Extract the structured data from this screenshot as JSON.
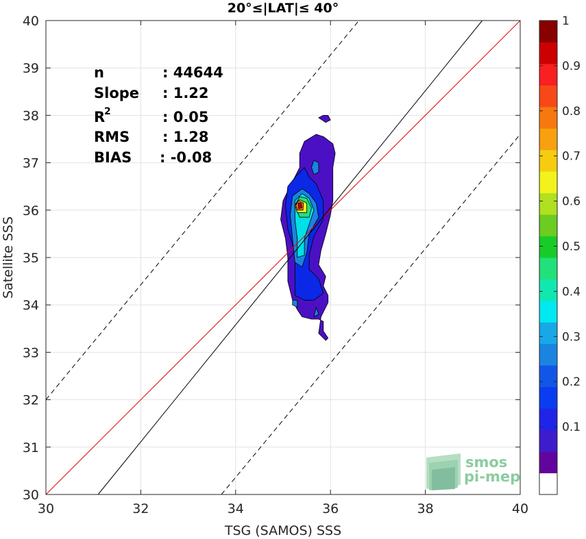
{
  "chart_data": {
    "type": "scatter",
    "title": "20°≤|LAT|≤ 40°",
    "xlabel": "TSG (SAMOS) SSS",
    "ylabel": "Satellite SSS",
    "xlim": [
      30,
      40
    ],
    "ylim": [
      30,
      40
    ],
    "xticks": [
      "30",
      "32",
      "34",
      "36",
      "38",
      "40"
    ],
    "yticks": [
      "30",
      "31",
      "32",
      "33",
      "34",
      "35",
      "36",
      "37",
      "38",
      "39",
      "40"
    ],
    "grid": true,
    "stats": [
      {
        "key": "n",
        "value": ": 44644"
      },
      {
        "key": "Slope",
        "value": ": 1.22"
      },
      {
        "key": "R",
        "sup": "2",
        "value": ": 0.05"
      },
      {
        "key": "RMS",
        "value": ": 1.28"
      },
      {
        "key": "BIAS",
        "value": ": -0.08"
      }
    ],
    "lines": [
      {
        "kind": "one-to-one",
        "color": "#e8000b",
        "style": "solid",
        "points": [
          [
            30,
            30
          ],
          [
            40,
            40
          ]
        ]
      },
      {
        "kind": "regression",
        "color": "#000000",
        "style": "solid",
        "points": [
          [
            31.1,
            30
          ],
          [
            39.2,
            40
          ]
        ]
      },
      {
        "kind": "upper-bound",
        "color": "#000000",
        "style": "dashed",
        "points": [
          [
            30,
            32
          ],
          [
            36.6,
            40
          ]
        ]
      },
      {
        "kind": "lower-bound",
        "color": "#000000",
        "style": "dashed",
        "points": [
          [
            33.7,
            30
          ],
          [
            40,
            37.6
          ]
        ]
      }
    ],
    "density_contours": [
      {
        "level": 0.05,
        "color": "#4b10c4",
        "points": [
          [
            35.3,
            33.9
          ],
          [
            35.4,
            33.75
          ],
          [
            35.6,
            33.7
          ],
          [
            35.75,
            33.7
          ],
          [
            35.85,
            33.65
          ],
          [
            35.85,
            33.45
          ],
          [
            35.95,
            33.3
          ],
          [
            35.9,
            33.25
          ],
          [
            35.75,
            33.4
          ],
          [
            35.8,
            33.75
          ],
          [
            35.95,
            34.05
          ],
          [
            35.95,
            34.2
          ],
          [
            35.85,
            34.4
          ],
          [
            35.9,
            34.6
          ],
          [
            35.75,
            34.85
          ],
          [
            35.8,
            35.15
          ],
          [
            35.9,
            35.5
          ],
          [
            36.0,
            35.9
          ],
          [
            36.05,
            36.2
          ],
          [
            36.05,
            36.5
          ],
          [
            36.05,
            36.9
          ],
          [
            36.1,
            37.2
          ],
          [
            36.05,
            37.4
          ],
          [
            35.85,
            37.55
          ],
          [
            35.7,
            37.6
          ],
          [
            35.45,
            37.45
          ],
          [
            35.35,
            37.2
          ],
          [
            35.35,
            36.9
          ],
          [
            35.2,
            36.6
          ],
          [
            35.0,
            36.2
          ],
          [
            34.95,
            35.8
          ],
          [
            35.05,
            35.4
          ],
          [
            35.1,
            35.0
          ],
          [
            35.1,
            34.5
          ],
          [
            35.2,
            34.1
          ]
        ]
      },
      {
        "level": 0.05,
        "color": "#4b10c4",
        "points": [
          [
            35.75,
            37.95
          ],
          [
            35.85,
            38.0
          ],
          [
            35.95,
            38.0
          ],
          [
            36.0,
            37.9
          ],
          [
            35.9,
            37.85
          ]
        ]
      },
      {
        "level": 0.15,
        "color": "#0a28e6",
        "points": [
          [
            35.25,
            34.2
          ],
          [
            35.45,
            34.1
          ],
          [
            35.65,
            34.1
          ],
          [
            35.85,
            34.25
          ],
          [
            35.75,
            34.55
          ],
          [
            35.55,
            34.75
          ],
          [
            35.55,
            35.05
          ],
          [
            35.65,
            35.45
          ],
          [
            35.85,
            35.8
          ],
          [
            35.85,
            36.2
          ],
          [
            35.7,
            36.55
          ],
          [
            35.55,
            36.7
          ],
          [
            35.45,
            36.9
          ],
          [
            35.3,
            36.75
          ],
          [
            35.1,
            36.5
          ],
          [
            35.05,
            36.1
          ],
          [
            35.1,
            35.6
          ],
          [
            35.25,
            35.1
          ],
          [
            35.25,
            34.6
          ]
        ]
      },
      {
        "level": 0.25,
        "color": "#1a84e0",
        "points": [
          [
            35.25,
            34.9
          ],
          [
            35.4,
            34.8
          ],
          [
            35.5,
            35.1
          ],
          [
            35.55,
            35.5
          ],
          [
            35.75,
            35.85
          ],
          [
            35.7,
            36.15
          ],
          [
            35.55,
            36.35
          ],
          [
            35.4,
            36.45
          ],
          [
            35.2,
            36.3
          ],
          [
            35.15,
            35.9
          ],
          [
            35.2,
            35.4
          ]
        ]
      },
      {
        "level": 0.35,
        "color": "#00e0e8",
        "points": [
          [
            35.3,
            35.0
          ],
          [
            35.45,
            35.05
          ],
          [
            35.45,
            35.4
          ],
          [
            35.55,
            35.7
          ],
          [
            35.65,
            36.0
          ],
          [
            35.55,
            36.25
          ],
          [
            35.4,
            36.35
          ],
          [
            35.25,
            36.2
          ],
          [
            35.25,
            35.8
          ],
          [
            35.3,
            35.4
          ]
        ]
      },
      {
        "level": 0.45,
        "color": "#22e07a",
        "points": [
          [
            35.35,
            35.85
          ],
          [
            35.55,
            35.85
          ],
          [
            35.6,
            36.05
          ],
          [
            35.5,
            36.25
          ],
          [
            35.35,
            36.28
          ],
          [
            35.25,
            36.1
          ]
        ]
      },
      {
        "level": 0.6,
        "color": "#f2f21c",
        "points": [
          [
            35.3,
            35.95
          ],
          [
            35.5,
            35.95
          ],
          [
            35.5,
            36.15
          ],
          [
            35.35,
            36.22
          ],
          [
            35.25,
            36.1
          ]
        ]
      },
      {
        "level": 0.75,
        "color": "#f07020",
        "points": [
          [
            35.3,
            36.0
          ],
          [
            35.42,
            36.0
          ],
          [
            35.43,
            36.15
          ],
          [
            35.32,
            36.2
          ],
          [
            35.27,
            36.1
          ]
        ]
      },
      {
        "level": 0.9,
        "color": "#c00000",
        "points": [
          [
            35.33,
            36.03
          ],
          [
            35.4,
            36.05
          ],
          [
            35.38,
            36.15
          ],
          [
            35.32,
            36.15
          ]
        ]
      },
      {
        "level": 0.3,
        "color": "#1a84e0",
        "points": [
          [
            35.65,
            36.75
          ],
          [
            35.75,
            36.8
          ],
          [
            35.75,
            37.0
          ],
          [
            35.65,
            37.05
          ],
          [
            35.6,
            36.9
          ]
        ]
      },
      {
        "level": 0.3,
        "color": "#1a84e0",
        "points": [
          [
            35.65,
            33.75
          ],
          [
            35.75,
            33.8
          ],
          [
            35.7,
            33.95
          ]
        ]
      },
      {
        "level": 0.3,
        "color": "#1a84e0",
        "points": [
          [
            35.2,
            34.0
          ],
          [
            35.3,
            33.95
          ],
          [
            35.3,
            34.1
          ],
          [
            35.2,
            34.1
          ]
        ]
      }
    ],
    "colorbar": {
      "ticks": [
        "0.1",
        "0.2",
        "0.3",
        "0.4",
        "0.5",
        "0.6",
        "0.7",
        "0.8",
        "0.9",
        "1"
      ],
      "bands": [
        "#ffffff",
        "#62049e",
        "#3d1ccc",
        "#2024e8",
        "#0a3cf0",
        "#1256e8",
        "#1a84e0",
        "#18a8e8",
        "#00e8f0",
        "#10e8b0",
        "#22e07a",
        "#18cc28",
        "#6ccc20",
        "#b0e020",
        "#f2f21c",
        "#f7cc10",
        "#f8a010",
        "#f87810",
        "#f84818",
        "#f82020",
        "#cc0000",
        "#880000"
      ]
    }
  },
  "logo": {
    "line1": "smos",
    "line2": "pi-mep"
  }
}
